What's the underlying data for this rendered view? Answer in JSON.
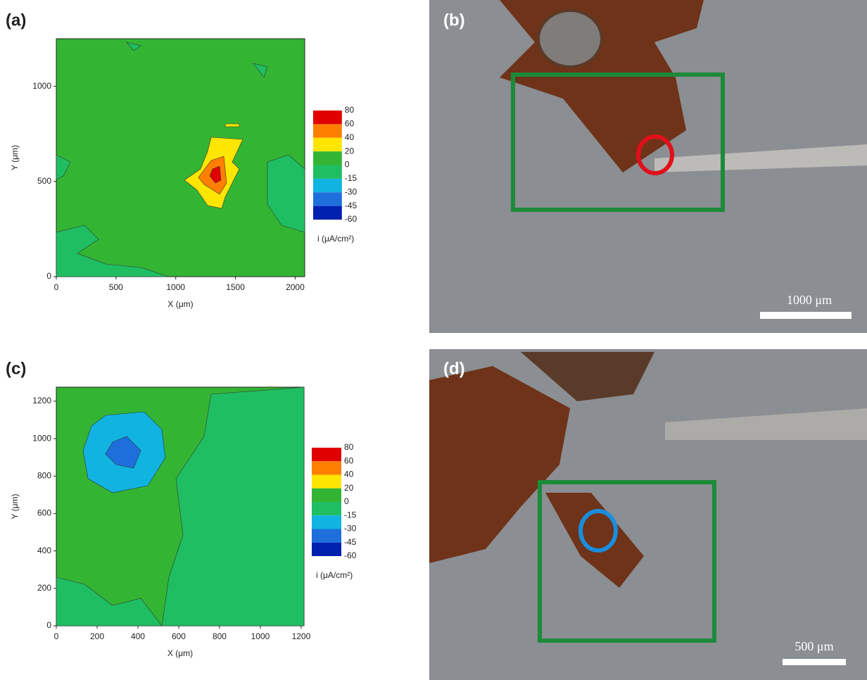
{
  "chart_data": [
    {
      "type": "contour",
      "panel": "(a)",
      "xlabel": "X (μm)",
      "ylabel": "Y (μm)",
      "xlim": [
        0,
        2080
      ],
      "ylim": [
        0,
        1250
      ],
      "xticks": [
        0,
        500,
        1000,
        1500,
        2000
      ],
      "yticks": [
        0,
        500,
        1000
      ],
      "levels": [
        80,
        60,
        40,
        20,
        0,
        -15,
        -30,
        -45,
        -60
      ],
      "level_colors": [
        "#e00000",
        "#ff7f00",
        "#ffe600",
        "#33b533",
        "#1fbe63",
        "#11b3e0",
        "#1e6fdc",
        "#0020b0"
      ],
      "colorbar_label": "i (μA/cm²)"
    },
    {
      "type": "contour",
      "panel": "(c)",
      "xlabel": "X (μm)",
      "ylabel": "Y (μm)",
      "xlim": [
        0,
        1214
      ],
      "ylim": [
        0,
        1275
      ],
      "xticks": [
        0,
        200,
        400,
        600,
        800,
        1000,
        1200
      ],
      "yticks": [
        0,
        200,
        400,
        600,
        800,
        1000,
        1200
      ],
      "levels": [
        80,
        60,
        40,
        20,
        0,
        -15,
        -30,
        -45,
        -60
      ],
      "level_colors": [
        "#e00000",
        "#ff7f00",
        "#ffe600",
        "#33b533",
        "#1fbe63",
        "#11b3e0",
        "#1e6fdc",
        "#0020b0"
      ],
      "colorbar_label": "i (μA/cm²)"
    }
  ],
  "photos": [
    {
      "panel": "(b)",
      "scale_bar": "1000 μm"
    },
    {
      "panel": "(d)",
      "scale_bar": "500 μm"
    }
  ]
}
